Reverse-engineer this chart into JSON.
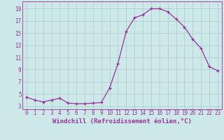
{
  "x": [
    0,
    1,
    2,
    3,
    4,
    5,
    6,
    7,
    8,
    9,
    10,
    11,
    12,
    13,
    14,
    15,
    16,
    17,
    18,
    19,
    20,
    21,
    22,
    23
  ],
  "y": [
    4.5,
    4.0,
    3.7,
    4.0,
    4.3,
    3.5,
    3.4,
    3.4,
    3.5,
    3.6,
    6.0,
    10.0,
    15.3,
    17.5,
    18.0,
    19.0,
    19.0,
    18.5,
    17.3,
    16.0,
    14.0,
    12.5,
    9.5,
    8.8
  ],
  "line_color": "#993399",
  "marker": "+",
  "marker_size": 3.5,
  "bg_color": "#cce8e8",
  "grid_color": "#aacccc",
  "xlabel": "Windchill (Refroidissement éolien,°C)",
  "xlim": [
    -0.5,
    23.5
  ],
  "ylim": [
    2.5,
    20.2
  ],
  "xticks": [
    0,
    1,
    2,
    3,
    4,
    5,
    6,
    7,
    8,
    9,
    10,
    11,
    12,
    13,
    14,
    15,
    16,
    17,
    18,
    19,
    20,
    21,
    22,
    23
  ],
  "yticks": [
    3,
    5,
    7,
    9,
    11,
    13,
    15,
    17,
    19
  ],
  "tick_label_fontsize": 5.5,
  "xlabel_fontsize": 6.5,
  "lw": 0.9,
  "marker_lw": 1.0
}
